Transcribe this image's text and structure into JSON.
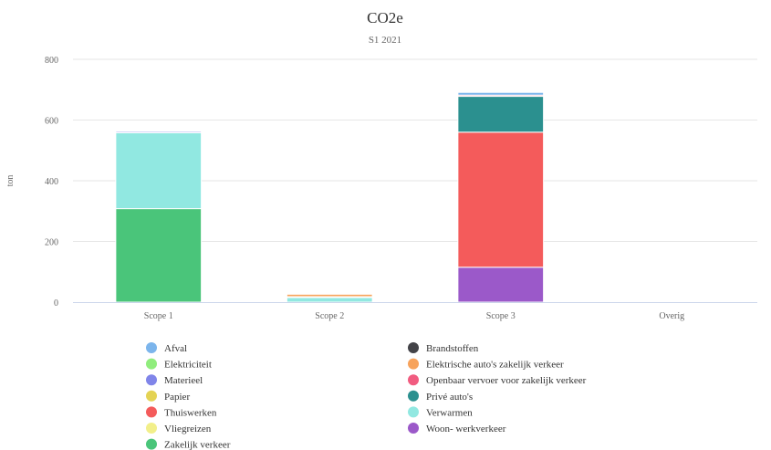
{
  "chart_data": {
    "type": "bar",
    "stacked": true,
    "title": "CO2e",
    "subtitle": "S1 2021",
    "ylabel": "ton",
    "xlabel": "",
    "ylim": [
      0,
      800
    ],
    "yticks": [
      0,
      200,
      400,
      600,
      800
    ],
    "grid": true,
    "legend": "bottom",
    "categories": [
      "Scope 1",
      "Scope 2",
      "Scope 3",
      "Overig"
    ],
    "series": [
      {
        "name": "Afval",
        "color": "#7cb5ec",
        "values": [
          0,
          0,
          9,
          0
        ]
      },
      {
        "name": "Brandstoffen",
        "color": "#434348",
        "values": [
          0,
          0,
          0,
          0
        ]
      },
      {
        "name": "Elektriciteit",
        "color": "#90ed7d",
        "values": [
          0,
          0,
          0,
          0
        ]
      },
      {
        "name": "Elektrische auto's zakelijk verkeer",
        "color": "#f7a35c",
        "values": [
          0,
          8,
          0,
          0
        ]
      },
      {
        "name": "Materieel",
        "color": "#8085e9",
        "values": [
          4,
          0,
          0,
          0
        ]
      },
      {
        "name": "Openbaar vervoer voor zakelijk verkeer",
        "color": "#f15c80",
        "values": [
          0,
          0,
          4,
          0
        ]
      },
      {
        "name": "Papier",
        "color": "#e4d354",
        "values": [
          0,
          0,
          0,
          0
        ]
      },
      {
        "name": "Privé auto's",
        "color": "#2b908f",
        "values": [
          0,
          0,
          118,
          0
        ]
      },
      {
        "name": "Thuiswerken",
        "color": "#f45b5b",
        "values": [
          0,
          0,
          445,
          0
        ]
      },
      {
        "name": "Verwarmen",
        "color": "#91e8e1",
        "values": [
          250,
          15,
          0,
          0
        ]
      },
      {
        "name": "Vliegreizen",
        "color": "#f2ef8a",
        "values": [
          0,
          3,
          0,
          0
        ]
      },
      {
        "name": "Woon- werkverkeer",
        "color": "#9b59c9",
        "values": [
          0,
          0,
          115,
          0
        ]
      },
      {
        "name": "Zakelijk verkeer",
        "color": "#4ac57a",
        "values": [
          308,
          0,
          0,
          0
        ]
      }
    ],
    "stack_order": [
      "Zakelijk verkeer",
      "Woon- werkverkeer",
      "Thuiswerken",
      "Verwarmen",
      "Privé auto's",
      "Vliegreizen",
      "Openbaar vervoer voor zakelijk verkeer",
      "Elektrische auto's zakelijk verkeer",
      "Materieel",
      "Afval",
      "Brandstoffen",
      "Elektriciteit",
      "Papier"
    ]
  }
}
